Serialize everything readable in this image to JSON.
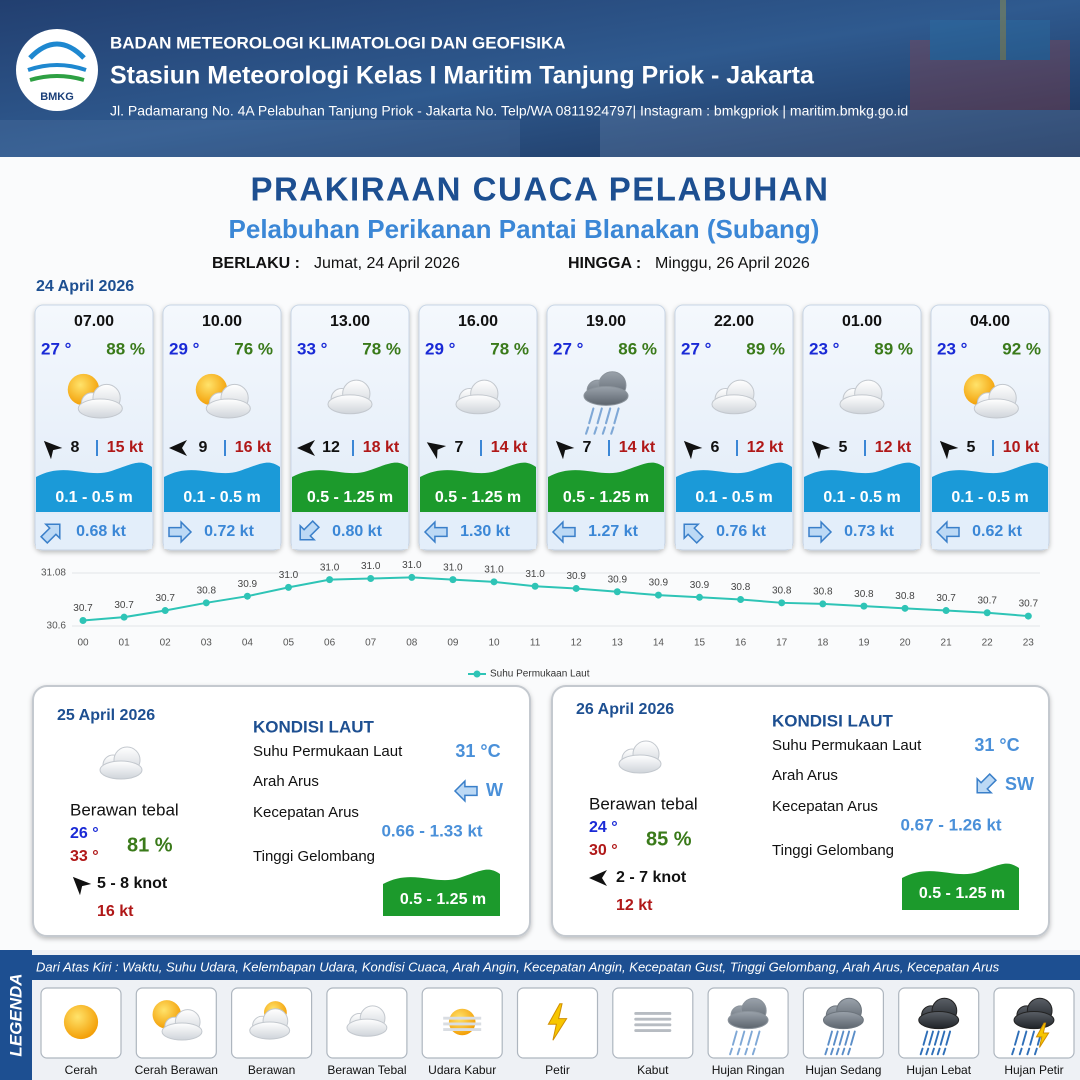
{
  "header": {
    "logo": "BMKG",
    "org": "BADAN METEOROLOGI KLIMATOLOGI DAN GEOFISIKA",
    "station": "Stasiun Meteorologi Kelas I Maritim Tanjung Priok - Jakarta",
    "address": "Jl. Padamarang No. 4A Pelabuhan Tanjung Priok - Jakarta No. Telp/WA 0811924797| Instagram : bmkgpriok | maritim.bmkg.go.id"
  },
  "title": "PRAKIRAAN CUACA PELABUHAN",
  "subtitle": "Pelabuhan Perikanan Pantai Blanakan (Subang)",
  "valid_from_label": "BERLAKU :",
  "valid_from": "Jumat, 24 April 2026",
  "valid_to_label": "HINGGA :",
  "valid_to": "Minggu, 26 April 2026",
  "day1_date": "24 April 2026",
  "forecasts": [
    {
      "time": "07.00",
      "temp": "27 °",
      "humidity": "88 %",
      "icon": "Cerah Berawan",
      "wind_angle": -135,
      "wind": "8",
      "gust": "15 kt",
      "wave": "0.1 - 0.5 m",
      "wave_color": "#1b9ad8",
      "current_angle": -45,
      "current": "0.68 kt"
    },
    {
      "time": "10.00",
      "temp": "29 °",
      "humidity": "76 %",
      "icon": "Cerah Berawan",
      "wind_angle": 180,
      "wind": "9",
      "gust": "16 kt",
      "wave": "0.1 - 0.5 m",
      "wave_color": "#1b9ad8",
      "current_angle": 0,
      "current": "0.72 kt"
    },
    {
      "time": "13.00",
      "temp": "33 °",
      "humidity": "78 %",
      "icon": "Berawan Tebal",
      "wind_angle": 180,
      "wind": "12",
      "gust": "18 kt",
      "wave": "0.5 - 1.25 m",
      "wave_color": "#1c9a2c",
      "current_angle": 135,
      "current": "0.80 kt"
    },
    {
      "time": "16.00",
      "temp": "29 °",
      "humidity": "78 %",
      "icon": "Berawan Tebal",
      "wind_angle": -145,
      "wind": "7",
      "gust": "14 kt",
      "wave": "0.5 - 1.25 m",
      "wave_color": "#1c9a2c",
      "current_angle": 180,
      "current": "1.30 kt"
    },
    {
      "time": "19.00",
      "temp": "27 °",
      "humidity": "86 %",
      "icon": "Hujan Ringan",
      "wind_angle": -135,
      "wind": "7",
      "gust": "14 kt",
      "wave": "0.5 - 1.25 m",
      "wave_color": "#1c9a2c",
      "current_angle": 180,
      "current": "1.27 kt"
    },
    {
      "time": "22.00",
      "temp": "27 °",
      "humidity": "89 %",
      "icon": "Berawan Tebal",
      "wind_angle": -135,
      "wind": "6",
      "gust": "12 kt",
      "wave": "0.1 - 0.5 m",
      "wave_color": "#1b9ad8",
      "current_angle": -135,
      "current": "0.76 kt"
    },
    {
      "time": "01.00",
      "temp": "23 °",
      "humidity": "89 %",
      "icon": "Berawan Tebal",
      "wind_angle": -135,
      "wind": "5",
      "gust": "12 kt",
      "wave": "0.1 - 0.5 m",
      "wave_color": "#1b9ad8",
      "current_angle": 0,
      "current": "0.73 kt"
    },
    {
      "time": "04.00",
      "temp": "23 °",
      "humidity": "92 %",
      "icon": "Cerah Berawan",
      "wind_angle": -135,
      "wind": "5",
      "gust": "10 kt",
      "wave": "0.1 - 0.5 m",
      "wave_color": "#1b9ad8",
      "current_angle": 180,
      "current": "0.62 kt"
    }
  ],
  "chart_data": {
    "type": "line",
    "categories": [
      "00",
      "01",
      "02",
      "03",
      "04",
      "05",
      "06",
      "07",
      "08",
      "09",
      "10",
      "11",
      "12",
      "13",
      "14",
      "15",
      "16",
      "17",
      "18",
      "19",
      "20",
      "21",
      "22",
      "23"
    ],
    "series": [
      {
        "name": "Suhu Permukaan Laut",
        "color": "#2ec4b6",
        "values": [
          30.65,
          30.68,
          30.74,
          30.81,
          30.87,
          30.95,
          31.02,
          31.03,
          31.04,
          31.02,
          31.0,
          30.96,
          30.94,
          30.91,
          30.88,
          30.86,
          30.84,
          30.81,
          30.8,
          30.78,
          30.76,
          30.74,
          30.72,
          30.69
        ],
        "value_labels": [
          "30.7",
          "30.7",
          "30.7",
          "30.8",
          "30.9",
          "31.0",
          "31.0",
          "31.0",
          "31.0",
          "31.0",
          "31.0",
          "31.0",
          "30.9",
          "30.9",
          "30.9",
          "30.9",
          "30.8",
          "30.8",
          "30.8",
          "30.8",
          "30.8",
          "30.7",
          "30.7",
          "30.7"
        ]
      }
    ],
    "ylim": [
      30.6,
      31.08
    ],
    "yticks": [
      30.6,
      31.08
    ],
    "grid": true
  },
  "days": [
    {
      "date": "25 April 2026",
      "condition": "Berawan tebal",
      "temp_min": "26 °",
      "temp_max": "33 °",
      "humidity": "81 %",
      "wind_angle": -135,
      "wind": "5  - 8 knot",
      "gust": "16 kt",
      "sea_title": "KONDISI LAUT",
      "sst_label": "Suhu Permukaan Laut",
      "sst": "31 °C",
      "current_dir_label": "Arah Arus",
      "current_angle": 180,
      "current_dir": "W",
      "current_speed_label": "Kecepatan Arus",
      "current_speed": "0.66  - 1.33 kt",
      "wave_label": "Tinggi Gelombang",
      "wave": "0.5 - 1.25 m",
      "wave_color": "#1c9a2c"
    },
    {
      "date": "26 April 2026",
      "condition": "Berawan tebal",
      "temp_min": "24 °",
      "temp_max": "30 °",
      "humidity": "85 %",
      "wind_angle": 180,
      "wind": "2  - 7 knot",
      "gust": "12 kt",
      "sea_title": "KONDISI LAUT",
      "sst_label": "Suhu Permukaan Laut",
      "sst": "31 °C",
      "current_dir_label": "Arah Arus",
      "current_angle": 135,
      "current_dir": "SW",
      "current_speed_label": "Kecepatan Arus",
      "current_speed": "0.67  - 1.26 kt",
      "wave_label": "Tinggi Gelombang",
      "wave": "0.5 - 1.25 m",
      "wave_color": "#1c9a2c"
    }
  ],
  "legend": {
    "title": "LEGENDA",
    "description": "Dari Atas Kiri : Waktu, Suhu Udara, Kelembapan Udara, Kondisi Cuaca, Arah Angin, Kecepatan Angin, Kecepatan Gust, Tinggi Gelombang, Arah Arus, Kecepatan Arus",
    "items": [
      "Cerah",
      "Cerah Berawan",
      "Berawan",
      "Berawan Tebal",
      "Udara Kabur",
      "Petir",
      "Kabut",
      "Hujan Ringan",
      "Hujan Sedang",
      "Hujan Lebat",
      "Hujan Petir"
    ]
  }
}
